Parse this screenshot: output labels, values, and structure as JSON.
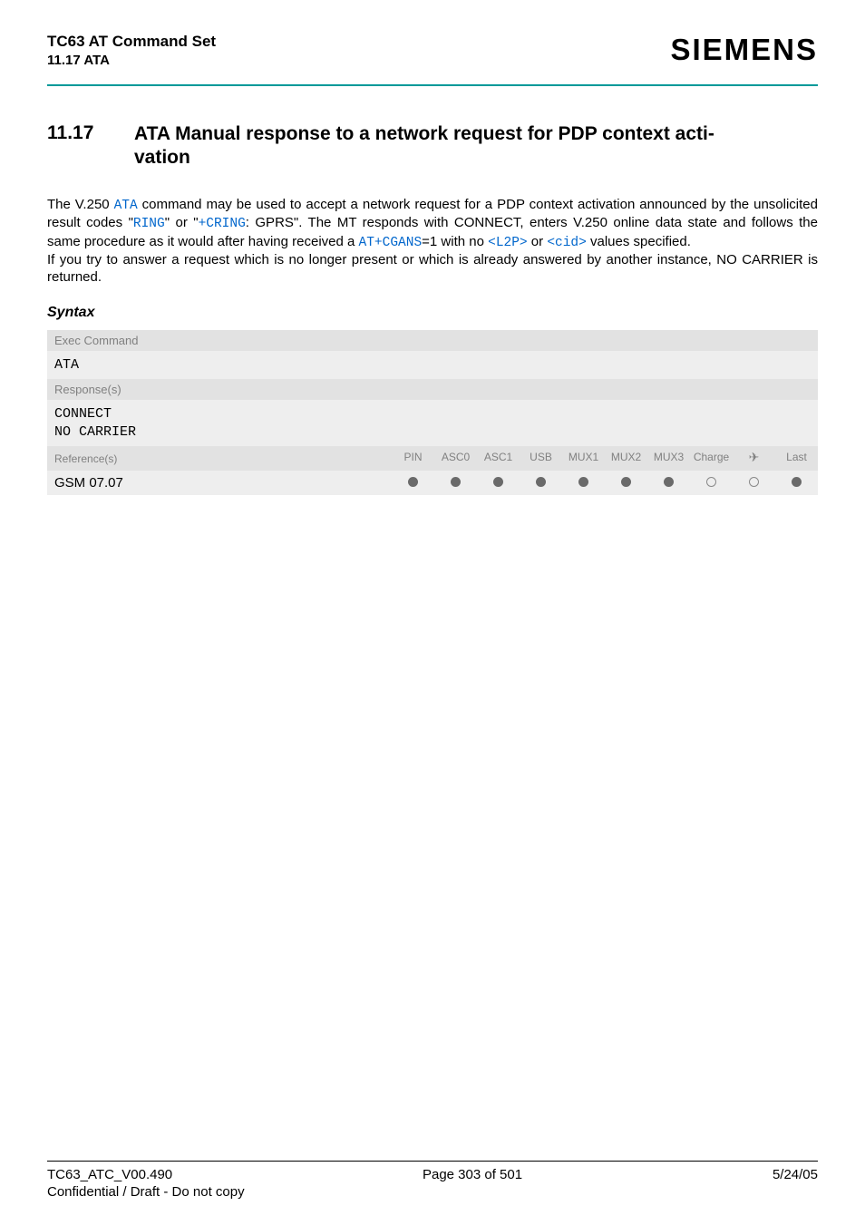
{
  "header": {
    "title": "TC63 AT Command Set",
    "subtitle": "11.17 ATA",
    "brand": "SIEMENS"
  },
  "section": {
    "number": "11.17",
    "title_line1": "ATA   Manual response to a network request for PDP context acti-",
    "title_line2": "vation"
  },
  "paragraph": {
    "p1_a": "The V.250 ",
    "ata": "ATA",
    "p1_b": " command may be used to accept a network request for a PDP context activation announced by the unsolicited result codes \"",
    "ring": "RING",
    "p1_c": "\" or \"",
    "cring": "+CRING",
    "p1_d": ": GPRS\". The MT responds with CONNECT, enters V.250 online data state and follows the same procedure as it would after having received a ",
    "atcgans": "AT+CGANS",
    "p1_e": "=1 with no ",
    "l2p": "<L2P>",
    "p1_f": " or ",
    "cid": "<cid>",
    "p1_g": " values specified.",
    "p2": "If you try to answer a request which is no longer present or which is already answered by another instance, NO CARRIER is returned."
  },
  "syntax": {
    "label": "Syntax",
    "exec_head": "Exec Command",
    "exec_body": "ATA",
    "resp_head": "Response(s)",
    "resp_line1": "CONNECT",
    "resp_line2": "NO CARRIER"
  },
  "reftable": {
    "left_head": "Reference(s)",
    "left_body": "GSM 07.07",
    "cols": [
      "PIN",
      "ASC0",
      "ASC1",
      "USB",
      "MUX1",
      "MUX2",
      "MUX3",
      "Charge",
      "✈",
      "Last"
    ],
    "dots": [
      "filled",
      "filled",
      "filled",
      "filled",
      "filled",
      "filled",
      "filled",
      "empty",
      "empty",
      "filled"
    ]
  },
  "footer": {
    "left": "TC63_ATC_V00.490",
    "center": "Page 303 of 501",
    "right": "5/24/05",
    "note": "Confidential / Draft - Do not copy"
  },
  "colors": {
    "rule": "#009999",
    "link": "#0066cc",
    "head_bg": "#e2e2e2",
    "body_bg": "#eeeeee"
  }
}
